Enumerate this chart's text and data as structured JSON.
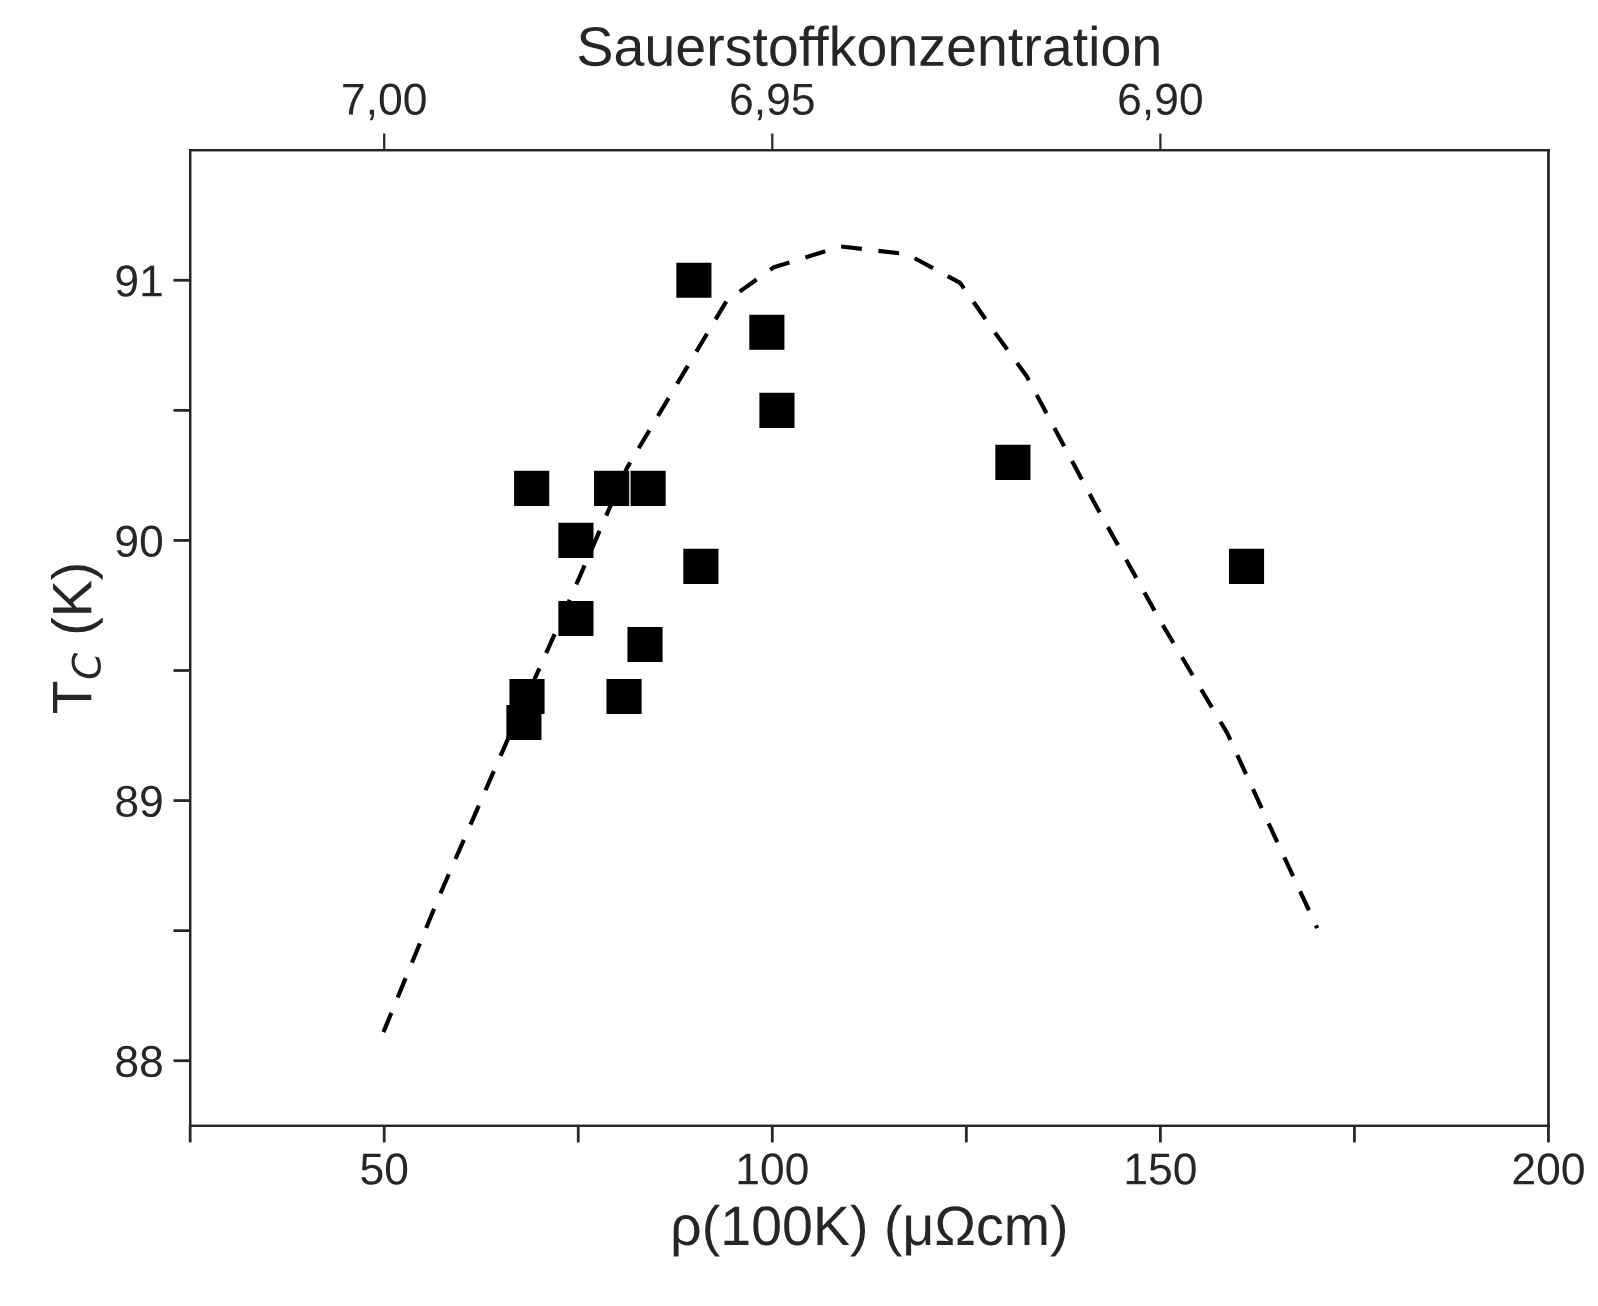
{
  "chart_data": {
    "type": "scatter",
    "xlabel": "ρ(100K) (μΩcm)",
    "ylabel": "T$_{C}$ (K)",
    "x2label": "Sauerstoffkonzentration",
    "xlim": [
      25,
      200
    ],
    "xticks": [
      {
        "value": 25,
        "label": null
      },
      50,
      {
        "value": 75,
        "label": null
      },
      100,
      {
        "value": 125,
        "label": null
      },
      150,
      {
        "value": 175,
        "label": null
      },
      200
    ],
    "ylim": [
      87.75,
      91.5
    ],
    "yticks": [
      88,
      {
        "value": 88.5,
        "label": null
      },
      89,
      {
        "value": 89.5,
        "label": null
      },
      90,
      {
        "value": 90.5,
        "label": null
      },
      91
    ],
    "x2lim": [
      7.025,
      6.85
    ],
    "x2ticks": [
      {
        "value": 7.0,
        "label": "7,00"
      },
      {
        "value": 6.95,
        "label": "6,95"
      },
      {
        "value": 6.9,
        "label": "6,90"
      }
    ],
    "grid": false,
    "series": [
      {
        "marker": "square",
        "color": "#000000",
        "x": [
          89.9,
          99.3,
          100.6,
          69.0,
          79.3,
          84.0,
          74.7,
          90.8,
          74.7,
          83.6,
          80.9,
          68.4,
          68.0,
          131.0,
          161.1
        ],
        "values": [
          91.0,
          90.8,
          90.5,
          90.2,
          90.2,
          90.2,
          90.0,
          89.9,
          89.7,
          89.6,
          89.4,
          89.4,
          89.3,
          90.3,
          89.9
        ]
      },
      {
        "type": "line",
        "line_style": "dashed",
        "marker": "none",
        "color": "#000000",
        "x": [
          49.9,
          57.2,
          65.4,
          72.7,
          81.3,
          88.1,
          94.1,
          100.2,
          108.8,
          117.4,
          124.2,
          128.9,
          132.8,
          141.4,
          150.0,
          158.6,
          164.6,
          170.2
        ],
        "values": [
          88.11,
          88.64,
          89.2,
          89.69,
          90.28,
          90.62,
          90.92,
          91.05,
          91.13,
          91.1,
          90.99,
          90.79,
          90.63,
          90.15,
          89.69,
          89.26,
          88.87,
          88.51
        ]
      }
    ]
  }
}
